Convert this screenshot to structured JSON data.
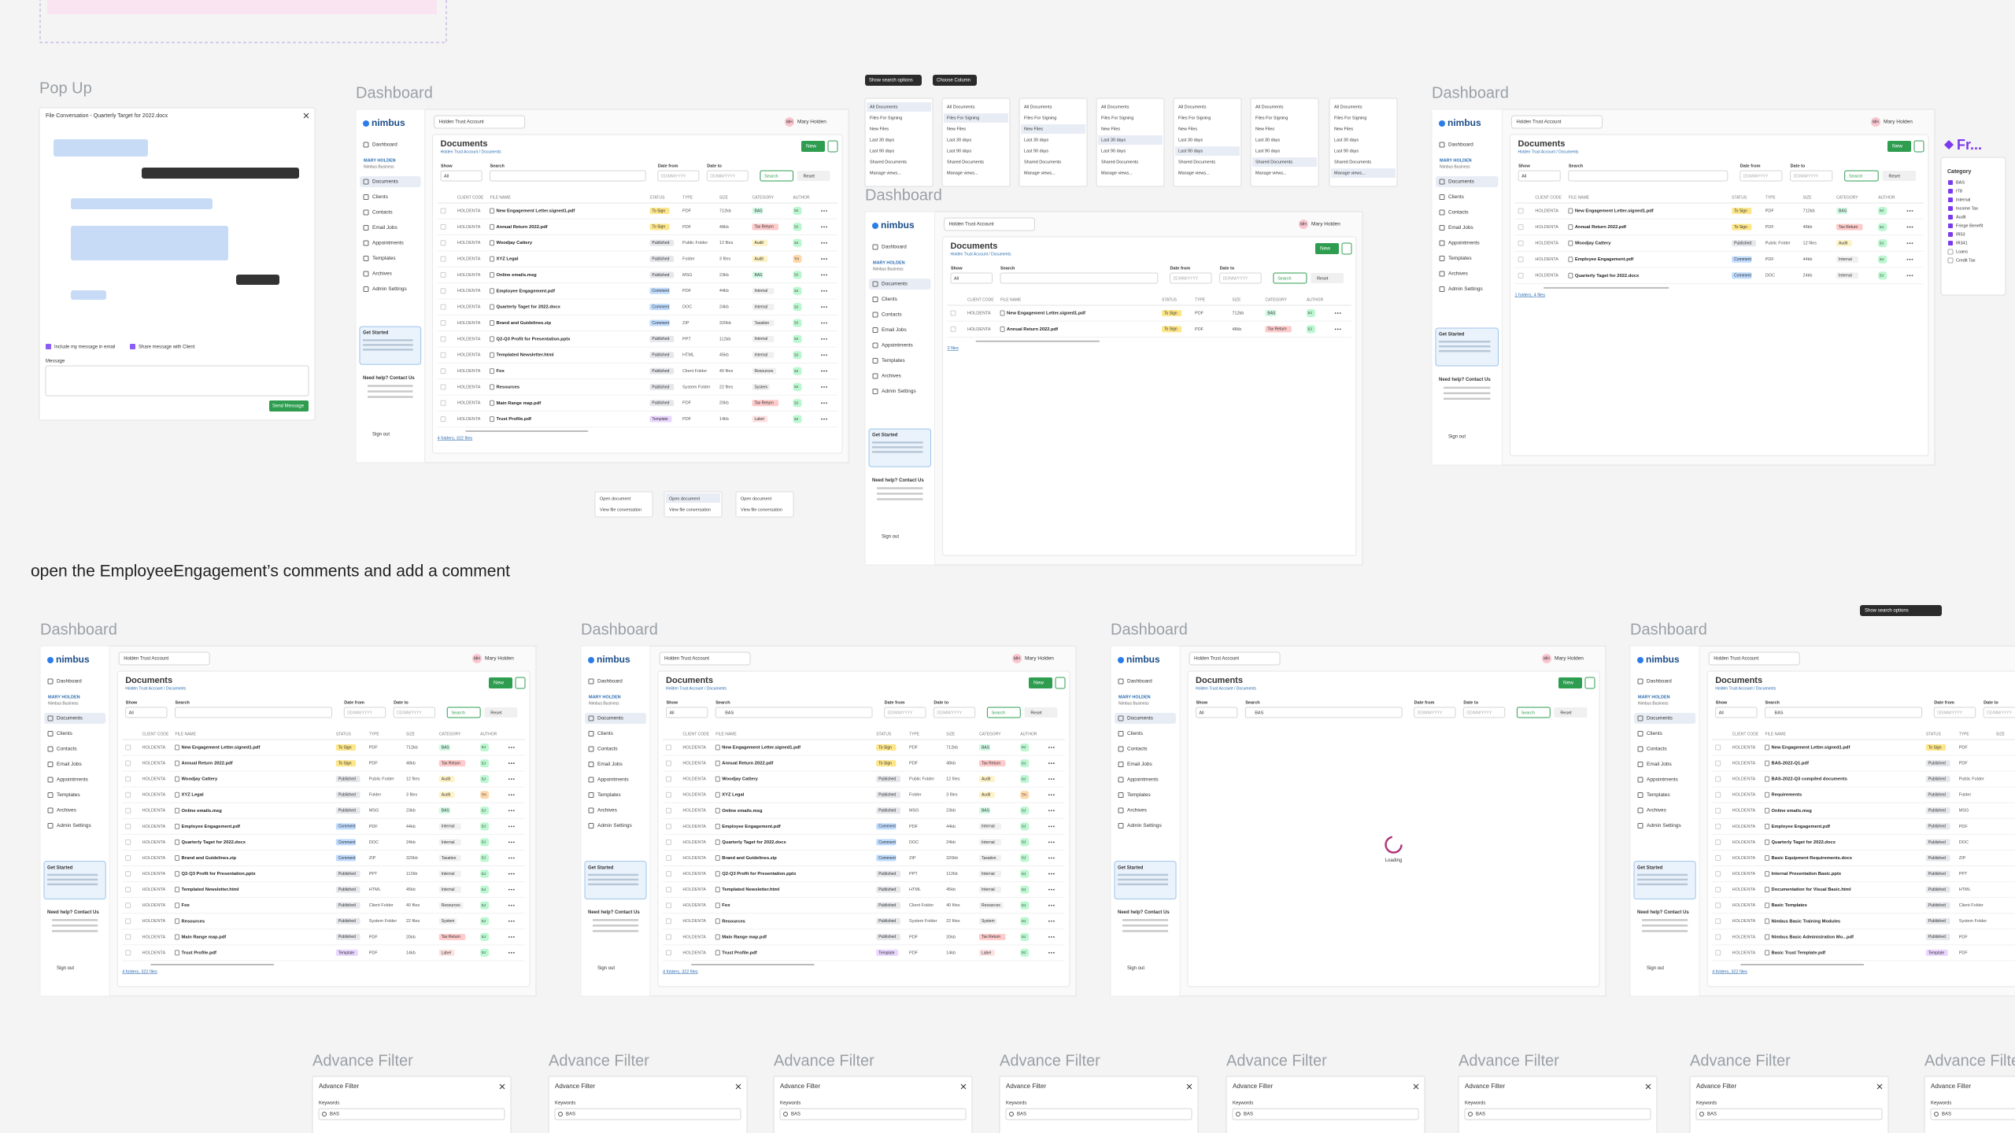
{
  "popup": {
    "label": "Pop Up",
    "title": "File Conversation - Quarterly Target for 2022.docx",
    "include_email": "Include my message in email",
    "share_client": "Share message with Client",
    "message_label": "Message",
    "send": "Send Message"
  },
  "app": {
    "brand": "nimbus",
    "account": "Holden Trust Account",
    "user": "Mary Holden",
    "initials": "MH",
    "sidebar_user": "MARY HOLDEN",
    "org": "Nimbus Business",
    "nav": [
      "Dashboard",
      "Documents",
      "Clients",
      "Contacts",
      "Email Jobs",
      "Appointments",
      "Templates",
      "Archives",
      "Admin Settings"
    ],
    "get_started": "Get Started",
    "help": "Need help? Contact Us",
    "sign_out": "Sign out",
    "page_title": "Documents",
    "breadcrumb": "Holden Trust Account / Documents",
    "new": "New",
    "filters": [
      "Show",
      "Search",
      "Date from",
      "Date to"
    ],
    "show_value": "All",
    "date_placeholder": "DD/MM/YYYY",
    "search_btn": "Search",
    "reset": "Reset",
    "columns": [
      "CLIENT CODE",
      "FILE NAME",
      "STATUS",
      "TYPE",
      "SIZE",
      "CATEGORY",
      "AUTHOR"
    ]
  },
  "dashboards": [
    {
      "label": "Dashboard",
      "footer": "4 folders, 322 files",
      "rows": [
        [
          "HOLDENTA",
          "New Engagement Letter.signed1.pdf",
          "To Sign",
          "PDF",
          "712kb",
          "BAS",
          "SJ"
        ],
        [
          "HOLDENTA",
          "Annual Return 2022.pdf",
          "To Sign",
          "PDF",
          "48kb",
          "Tax Return",
          "SJ"
        ],
        [
          "HOLDENTA",
          "Woodjay Cattery",
          "Published",
          "Public Folder",
          "12 files",
          "Audit",
          "SJ"
        ],
        [
          "HOLDENTA",
          "XYZ Legal",
          "Published",
          "Folder",
          "3 files",
          "Audit",
          "TH"
        ],
        [
          "HOLDENTA",
          "Online emails.msg",
          "Published",
          "MSG",
          "23kb",
          "BAS",
          "SJ"
        ],
        [
          "HOLDENTA",
          "Employee Engagement.pdf",
          "Comment",
          "PDF",
          "44kb",
          "Internal",
          "SJ"
        ],
        [
          "HOLDENTA",
          "Quarterly Taget for 2022.docx",
          "Comment",
          "DOC",
          "24kb",
          "Internal",
          "SJ"
        ],
        [
          "HOLDENTA",
          "Brand and Guidelines.zip",
          "Comment",
          "ZIP",
          "320kb",
          "Taxation",
          "SJ"
        ],
        [
          "HOLDENTA",
          "Q2-Q3 Profit for Presentation.pptx",
          "Published",
          "PPT",
          "112kb",
          "Internal",
          "SJ"
        ],
        [
          "HOLDENTA",
          "Templated Newsletter.html",
          "Published",
          "HTML",
          "45kb",
          "Internal",
          "SJ"
        ],
        [
          "HOLDENTA",
          "Fox",
          "Published",
          "Client Folder",
          "40 files",
          "Resources",
          "SJ"
        ],
        [
          "HOLDENTA",
          "Resources",
          "Published",
          "System Folder",
          "22 files",
          "System",
          "SJ"
        ],
        [
          "HOLDENTA",
          "Main Range map.pdf",
          "Published",
          "PDF",
          "20kb",
          "Tax Return",
          "SJ"
        ],
        [
          "HOLDENTA",
          "Trust Profile.pdf",
          "Template",
          "PDF",
          "14kb",
          "Label",
          "SJ"
        ]
      ]
    },
    {
      "label": "Dashboard",
      "footer": "2 files",
      "rows": [
        [
          "HOLDENTA",
          "New Engagement Letter.signed1.pdf",
          "To Sign",
          "PDF",
          "712kb",
          "BAS",
          "SJ"
        ],
        [
          "HOLDENTA",
          "Annual Return 2022.pdf",
          "To Sign",
          "PDF",
          "48kb",
          "Tax Return",
          "SJ"
        ]
      ]
    },
    {
      "label": "Dashboard",
      "footer": "1 folders, 4 files",
      "rows": [
        [
          "HOLDENTA",
          "New Engagement Letter.signed1.pdf",
          "To Sign",
          "PDF",
          "712kb",
          "BAS",
          "SJ"
        ],
        [
          "HOLDENTA",
          "Annual Return 2022.pdf",
          "To Sign",
          "PDF",
          "48kb",
          "Tax Return",
          "SJ"
        ],
        [
          "HOLDENTA",
          "Woodjay Cattery",
          "Published",
          "Public Folder",
          "12 files",
          "Audit",
          "SJ"
        ],
        [
          "HOLDENTA",
          "Employee Engagement.pdf",
          "Comment",
          "PDF",
          "44kb",
          "Internal",
          "SJ"
        ],
        [
          "HOLDENTA",
          "Quarterly Taget for 2022.docx",
          "Comment",
          "DOC",
          "24kb",
          "Internal",
          "SJ"
        ]
      ]
    },
    {
      "label": "Dashboard",
      "footer": "4 folders, 322 files",
      "rows": [
        [
          "HOLDENTA",
          "New Engagement Letter.signed1.pdf",
          "To Sign",
          "PDF",
          "712kb",
          "BAS",
          "SJ"
        ],
        [
          "HOLDENTA",
          "Annual Return 2022.pdf",
          "To Sign",
          "PDF",
          "48kb",
          "Tax Return",
          "SJ"
        ],
        [
          "HOLDENTA",
          "Woodjay Cattery",
          "Published",
          "Public Folder",
          "12 files",
          "Audit",
          "SJ"
        ],
        [
          "HOLDENTA",
          "XYZ Legal",
          "Published",
          "Folder",
          "3 files",
          "Audit",
          "TH"
        ],
        [
          "HOLDENTA",
          "Online emails.msg",
          "Published",
          "MSG",
          "23kb",
          "BAS",
          "SJ"
        ],
        [
          "HOLDENTA",
          "Employee Engagement.pdf",
          "Comment",
          "PDF",
          "44kb",
          "Internal",
          "SJ"
        ],
        [
          "HOLDENTA",
          "Quarterly Taget for 2022.docx",
          "Comment",
          "DOC",
          "24kb",
          "Internal",
          "SJ"
        ],
        [
          "HOLDENTA",
          "Brand and Guidelines.zip",
          "Comment",
          "ZIP",
          "320kb",
          "Taxation",
          "SJ"
        ],
        [
          "HOLDENTA",
          "Q2-Q3 Profit for Presentation.pptx",
          "Published",
          "PPT",
          "112kb",
          "Internal",
          "SJ"
        ],
        [
          "HOLDENTA",
          "Templated Newsletter.html",
          "Published",
          "HTML",
          "45kb",
          "Internal",
          "SJ"
        ],
        [
          "HOLDENTA",
          "Fox",
          "Published",
          "Client Folder",
          "40 files",
          "Resources",
          "SJ"
        ],
        [
          "HOLDENTA",
          "Resources",
          "Published",
          "System Folder",
          "22 files",
          "System",
          "SJ"
        ],
        [
          "HOLDENTA",
          "Main Range map.pdf",
          "Published",
          "PDF",
          "20kb",
          "Tax Return",
          "SJ"
        ],
        [
          "HOLDENTA",
          "Trust Profile.pdf",
          "Template",
          "PDF",
          "14kb",
          "Label",
          "SJ"
        ]
      ]
    },
    {
      "label": "Dashboard",
      "search": "BAS",
      "footer": "4 folders, 322 files",
      "rows": [
        [
          "HOLDENTA",
          "New Engagement Letter.signed1.pdf",
          "To Sign",
          "PDF",
          "712kb",
          "BAS",
          "SJ"
        ],
        [
          "HOLDENTA",
          "Annual Return 2022.pdf",
          "To Sign",
          "PDF",
          "48kb",
          "Tax Return",
          "SJ"
        ],
        [
          "HOLDENTA",
          "Woodjay Cattery",
          "Published",
          "Public Folder",
          "12 files",
          "Audit",
          "SJ"
        ],
        [
          "HOLDENTA",
          "XYZ Legal",
          "Published",
          "Folder",
          "3 files",
          "Audit",
          "TH"
        ],
        [
          "HOLDENTA",
          "Online emails.msg",
          "Published",
          "MSG",
          "23kb",
          "BAS",
          "SJ"
        ],
        [
          "HOLDENTA",
          "Employee Engagement.pdf",
          "Comment",
          "PDF",
          "44kb",
          "Internal",
          "SJ"
        ],
        [
          "HOLDENTA",
          "Quarterly Taget for 2022.docx",
          "Comment",
          "DOC",
          "24kb",
          "Internal",
          "SJ"
        ],
        [
          "HOLDENTA",
          "Brand and Guidelines.zip",
          "Comment",
          "ZIP",
          "320kb",
          "Taxation",
          "SJ"
        ],
        [
          "HOLDENTA",
          "Q2-Q3 Profit for Presentation.pptx",
          "Published",
          "PPT",
          "112kb",
          "Internal",
          "SJ"
        ],
        [
          "HOLDENTA",
          "Templated Newsletter.html",
          "Published",
          "HTML",
          "45kb",
          "Internal",
          "SJ"
        ],
        [
          "HOLDENTA",
          "Fox",
          "Published",
          "Client Folder",
          "40 files",
          "Resources",
          "SJ"
        ],
        [
          "HOLDENTA",
          "Resources",
          "Published",
          "System Folder",
          "22 files",
          "System",
          "SJ"
        ],
        [
          "HOLDENTA",
          "Main Range map.pdf",
          "Published",
          "PDF",
          "20kb",
          "Tax Return",
          "SJ"
        ],
        [
          "HOLDENTA",
          "Trust Profile.pdf",
          "Template",
          "PDF",
          "14kb",
          "Label",
          "SJ"
        ]
      ]
    },
    {
      "label": "Dashboard",
      "search": "BAS",
      "loading": "Loading"
    },
    {
      "label": "Dashboard",
      "search": "BAS",
      "footer": "4 folders, 322 files",
      "rows": [
        [
          "HOLDENTA",
          "New Engagement Letter.signed1.pdf",
          "To Sign",
          "PDF"
        ],
        [
          "HOLDENTA",
          "BAS-2022-Q1.pdf",
          "Published",
          "PDF"
        ],
        [
          "HOLDENTA",
          "BAS-2022-Q3 compiled documents",
          "Published",
          "Public Folder"
        ],
        [
          "HOLDENTA",
          "Requirements",
          "Published",
          "Folder"
        ],
        [
          "HOLDENTA",
          "Online emails.msg",
          "Published",
          "MSG"
        ],
        [
          "HOLDENTA",
          "Employee Engagement.pdf",
          "Published",
          "PDF"
        ],
        [
          "HOLDENTA",
          "Quarterly Taget for 2022.docx",
          "Published",
          "DOC"
        ],
        [
          "HOLDENTA",
          "Basic Equipment Requirements.docx",
          "Published",
          "ZIP"
        ],
        [
          "HOLDENTA",
          "Internal Presentation Basic.pptx",
          "Published",
          "PPT"
        ],
        [
          "HOLDENTA",
          "Documentation for Visual Basic.html",
          "Published",
          "HTML"
        ],
        [
          "HOLDENTA",
          "Basic Templates",
          "Published",
          "Client Folder"
        ],
        [
          "HOLDENTA",
          "Nimbus Basic Training Modules",
          "Published",
          "System Folder"
        ],
        [
          "HOLDENTA",
          "Nimbus Basic Administration Mo...pdf",
          "Published",
          "PDF"
        ],
        [
          "HOLDENTA",
          "Basic Trust Template.pdf",
          "Template",
          "PDF"
        ]
      ]
    }
  ],
  "tooltips": [
    "Show search options",
    "Choose Column"
  ],
  "menu_items": [
    "All Documents",
    "Files For Signing",
    "New Files",
    "Last 30 days",
    "Last 90 days",
    "Shared Documents",
    "Manage views..."
  ],
  "context_menu": [
    "Open document",
    "View file conversation"
  ],
  "category_panel": {
    "title": "Fr...",
    "heading": "Category",
    "items": [
      "BAS",
      "IT8",
      "Internal",
      "Income Tax",
      "Audit",
      "Fringe Benefit",
      "IR53",
      "IR341",
      "Loans",
      "Credit Tax"
    ]
  },
  "instruction": "open the EmployeeEngagement’s comments and add a comment",
  "advance_filter": {
    "labels": [
      "Advance Filter",
      "Advance Filter",
      "Advance Filter",
      "Advance Filter",
      "Advance Filter",
      "Advance Filter",
      "Advance Filter",
      "Advance Filter"
    ],
    "title": "Advance Filter",
    "keywords": "Keywords",
    "keyword": "BAS"
  }
}
